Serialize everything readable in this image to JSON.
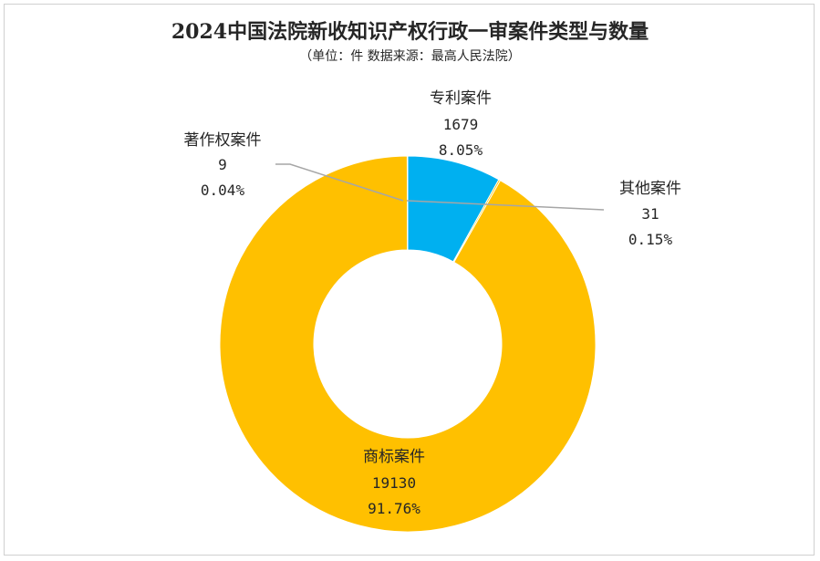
{
  "chart_data": {
    "type": "pie",
    "variant": "donut",
    "title": "2024中国法院新收知识产权行政一审案件类型与数量",
    "subtitle": "（单位：件   数据来源：最高人民法院）",
    "slices": [
      {
        "name": "专利案件",
        "value": 1679,
        "percent": "8.05%",
        "color": "#00b0f0"
      },
      {
        "name": "其他案件",
        "value": 31,
        "percent": "0.15%",
        "color": "#ffc000"
      },
      {
        "name": "商标案件",
        "value": 19130,
        "percent": "91.76%",
        "color": "#ffc000"
      },
      {
        "name": "著作权案件",
        "value": 9,
        "percent": "0.04%",
        "color": "#ffc000"
      }
    ],
    "leader_color": "#a6a6a6"
  }
}
